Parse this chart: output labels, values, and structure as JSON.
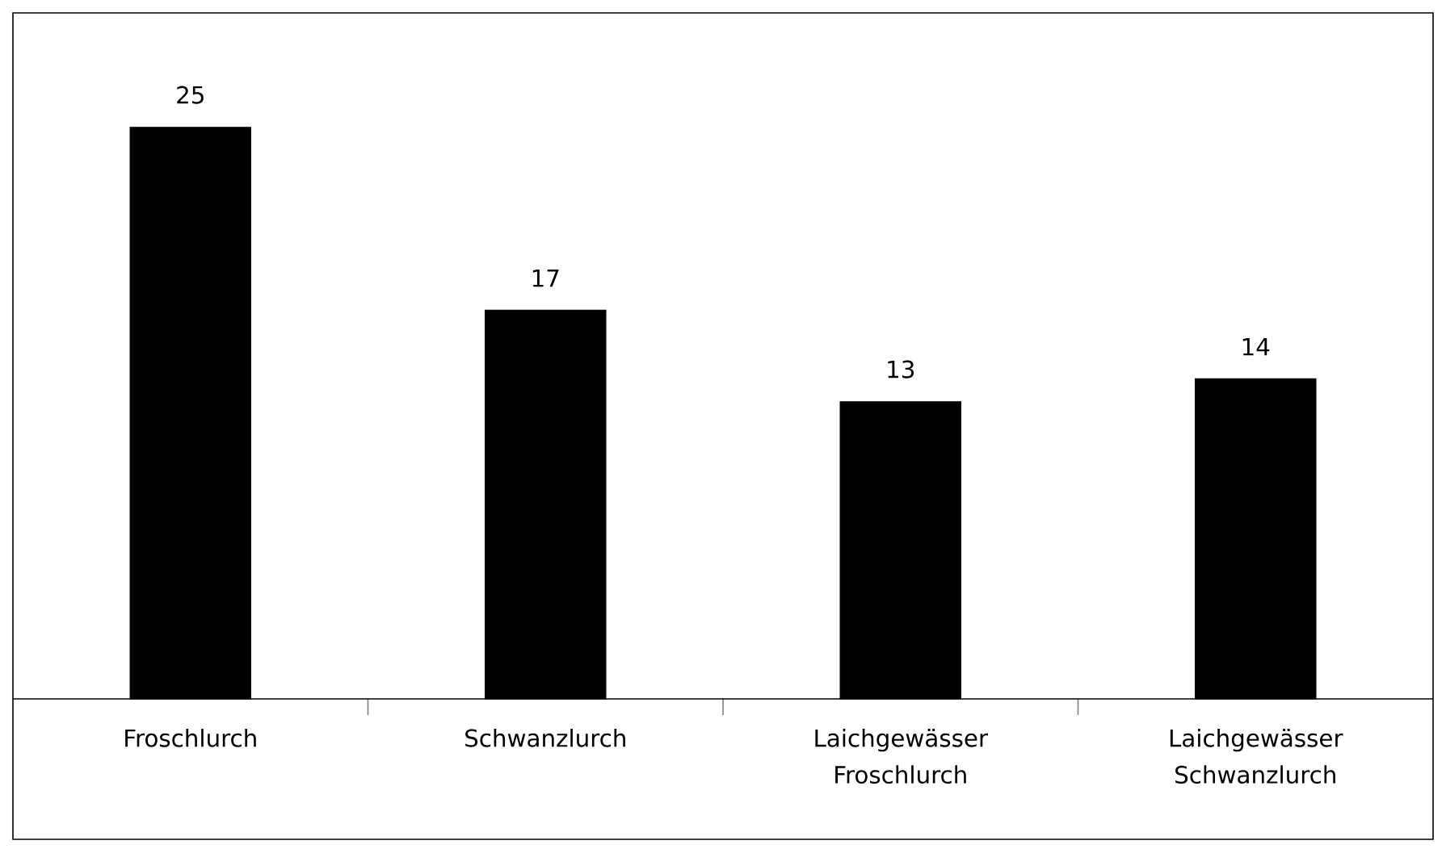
{
  "chart_data": {
    "type": "bar",
    "categories": [
      "Froschlurch",
      "Schwanzlurch",
      "Laichgewässer Froschlurch",
      "Laichgewässer Schwanzlurch"
    ],
    "values": [
      25,
      17,
      13,
      14
    ],
    "color": "#000000",
    "ylim": [
      0,
      30
    ],
    "data_labels": true,
    "tick_labels": "x"
  }
}
